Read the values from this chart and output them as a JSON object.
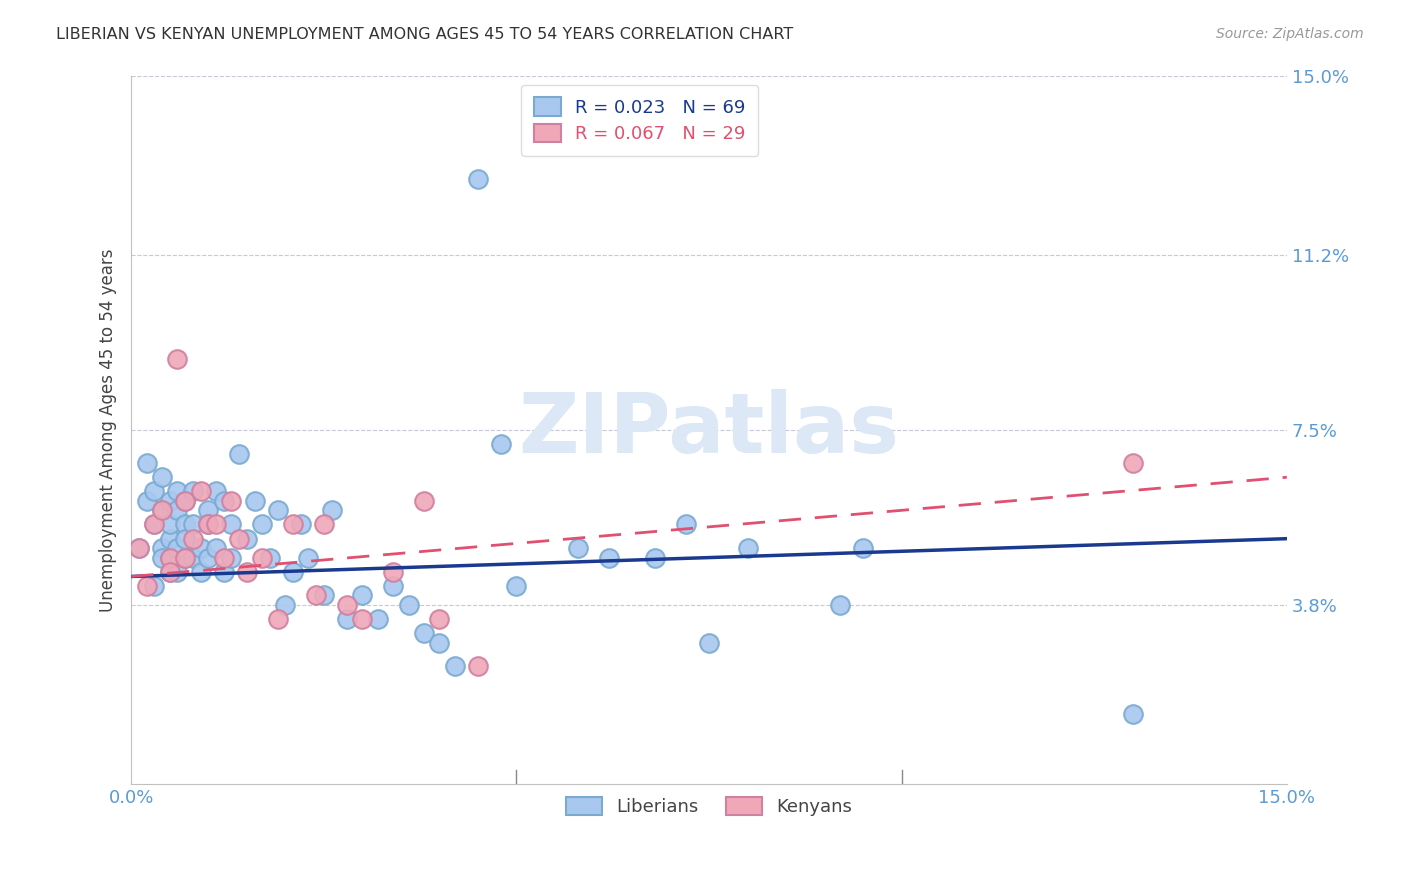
{
  "title": "LIBERIAN VS KENYAN UNEMPLOYMENT AMONG AGES 45 TO 54 YEARS CORRELATION CHART",
  "source": "Source: ZipAtlas.com",
  "ylabel": "Unemployment Among Ages 45 to 54 years",
  "xlim": [
    0,
    0.15
  ],
  "ylim": [
    0,
    0.15
  ],
  "ytick_vals": [
    0.0,
    0.038,
    0.075,
    0.112,
    0.15
  ],
  "ytick_labels": [
    "",
    "3.8%",
    "7.5%",
    "11.2%",
    "15.0%"
  ],
  "xtick_vals": [
    0.0,
    0.05,
    0.1,
    0.15
  ],
  "xtick_labels": [
    "0.0%",
    "",
    "",
    "15.0%"
  ],
  "liberian_color": "#a8c8f0",
  "kenyan_color": "#f0a8b8",
  "liberian_line_color": "#1a3a8f",
  "kenyan_line_color": "#e05070",
  "legend_liberian_R": "R = 0.023",
  "legend_liberian_N": "N = 69",
  "legend_kenyan_R": "R = 0.067",
  "legend_kenyan_N": "N = 29",
  "liberian_x": [
    0.001,
    0.002,
    0.002,
    0.003,
    0.003,
    0.003,
    0.004,
    0.004,
    0.004,
    0.004,
    0.005,
    0.005,
    0.005,
    0.005,
    0.005,
    0.006,
    0.006,
    0.006,
    0.006,
    0.007,
    0.007,
    0.007,
    0.007,
    0.008,
    0.008,
    0.008,
    0.009,
    0.009,
    0.01,
    0.01,
    0.01,
    0.011,
    0.011,
    0.012,
    0.012,
    0.013,
    0.013,
    0.014,
    0.015,
    0.016,
    0.017,
    0.018,
    0.019,
    0.02,
    0.021,
    0.022,
    0.023,
    0.025,
    0.026,
    0.028,
    0.03,
    0.032,
    0.034,
    0.036,
    0.038,
    0.04,
    0.042,
    0.045,
    0.048,
    0.05,
    0.058,
    0.062,
    0.068,
    0.072,
    0.075,
    0.08,
    0.092,
    0.095,
    0.13
  ],
  "liberian_y": [
    0.05,
    0.06,
    0.068,
    0.055,
    0.062,
    0.042,
    0.05,
    0.058,
    0.048,
    0.065,
    0.052,
    0.06,
    0.045,
    0.055,
    0.048,
    0.05,
    0.058,
    0.062,
    0.045,
    0.055,
    0.048,
    0.052,
    0.06,
    0.048,
    0.055,
    0.062,
    0.05,
    0.045,
    0.058,
    0.055,
    0.048,
    0.062,
    0.05,
    0.06,
    0.045,
    0.055,
    0.048,
    0.07,
    0.052,
    0.06,
    0.055,
    0.048,
    0.058,
    0.038,
    0.045,
    0.055,
    0.048,
    0.04,
    0.058,
    0.035,
    0.04,
    0.035,
    0.042,
    0.038,
    0.032,
    0.03,
    0.025,
    0.128,
    0.072,
    0.042,
    0.05,
    0.048,
    0.048,
    0.055,
    0.03,
    0.05,
    0.038,
    0.05,
    0.015
  ],
  "kenyan_x": [
    0.001,
    0.002,
    0.003,
    0.004,
    0.005,
    0.005,
    0.006,
    0.007,
    0.007,
    0.008,
    0.009,
    0.01,
    0.011,
    0.012,
    0.013,
    0.014,
    0.015,
    0.017,
    0.019,
    0.021,
    0.024,
    0.025,
    0.028,
    0.03,
    0.034,
    0.038,
    0.04,
    0.045,
    0.13
  ],
  "kenyan_y": [
    0.05,
    0.042,
    0.055,
    0.058,
    0.048,
    0.045,
    0.09,
    0.06,
    0.048,
    0.052,
    0.062,
    0.055,
    0.055,
    0.048,
    0.06,
    0.052,
    0.045,
    0.048,
    0.035,
    0.055,
    0.04,
    0.055,
    0.038,
    0.035,
    0.045,
    0.06,
    0.035,
    0.025,
    0.068
  ],
  "lib_trend_start_y": 0.044,
  "lib_trend_end_y": 0.052,
  "ken_trend_start_y": 0.044,
  "ken_trend_end_y": 0.065
}
